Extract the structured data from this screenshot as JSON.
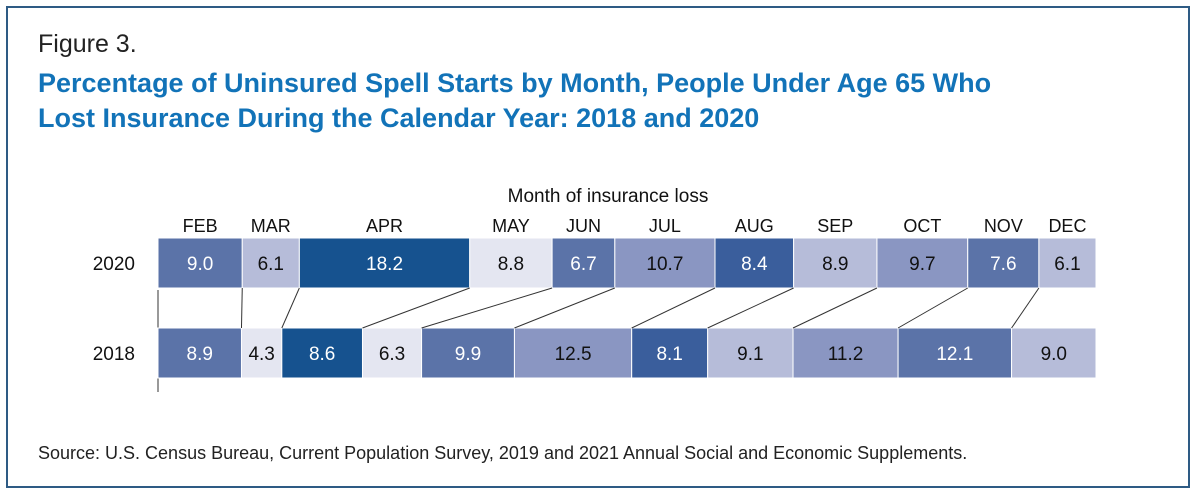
{
  "figure_label": "Figure 3.",
  "title_lines": [
    "Percentage of Uninsured Spell Starts by Month, People Under Age 65 Who",
    "Lost Insurance During the Calendar Year: 2018 and 2020"
  ],
  "source": "Source: U.S. Census Bureau, Current Population Survey, 2019 and 2021 Annual Social and Economic Supplements.",
  "colors": {
    "darkest": "#16528f",
    "dark": "#3a5e9c",
    "mid_dark": "#5b73a8",
    "mid": "#8a96c2",
    "light": "#b6bcd9",
    "lightest": "#e4e6f1",
    "connector": "#333333",
    "title": "#1273b8"
  },
  "chart_data": {
    "type": "bar",
    "subtype": "stacked-horizontal-100",
    "title": "Percentage of Uninsured Spell Starts by Month, People Under Age 65 Who Lost Insurance During the Calendar Year: 2018 and 2020",
    "xlabel": "Month of insurance loss",
    "categories": [
      "FEB",
      "MAR",
      "APR",
      "MAY",
      "JUN",
      "JUL",
      "AUG",
      "SEP",
      "OCT",
      "NOV",
      "DEC"
    ],
    "series": [
      {
        "name": "2020",
        "values": [
          9.0,
          6.1,
          18.2,
          8.8,
          6.7,
          10.7,
          8.4,
          8.9,
          9.7,
          7.6,
          6.1
        ],
        "shades": [
          "mid_dark",
          "light",
          "darkest",
          "lightest",
          "mid_dark",
          "mid",
          "dark",
          "light",
          "mid",
          "mid_dark",
          "light"
        ]
      },
      {
        "name": "2018",
        "values": [
          8.9,
          4.3,
          8.6,
          6.3,
          9.9,
          12.5,
          8.1,
          9.1,
          11.2,
          12.1,
          9.0
        ],
        "shades": [
          "mid_dark",
          "lightest",
          "darkest",
          "lightest",
          "mid_dark",
          "mid",
          "dark",
          "light",
          "mid",
          "mid_dark",
          "light"
        ]
      }
    ]
  }
}
